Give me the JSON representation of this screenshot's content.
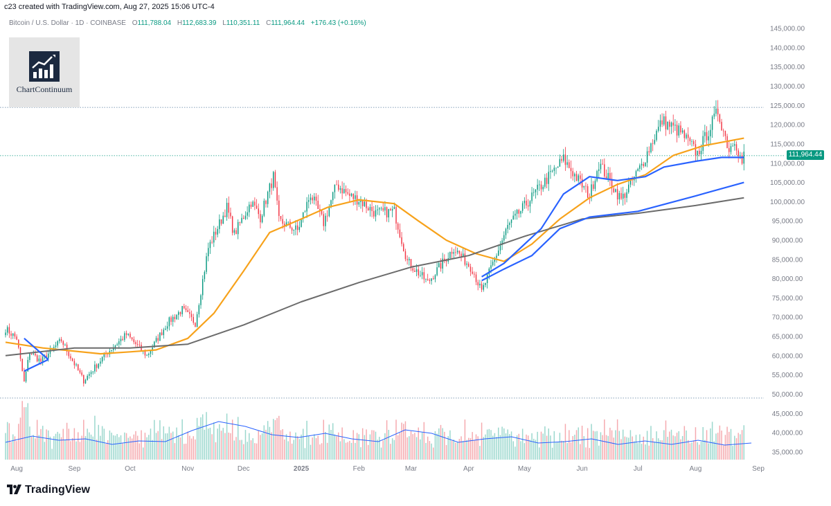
{
  "header": {
    "created": "c23 created with TradingView.com, Aug 27, 2025 15:06 UTC-4",
    "symbol": "Bitcoin / U.S. Dollar · 1D · COINBASE",
    "o_label": "O",
    "o": "111,788.04",
    "h_label": "H",
    "h": "112,683.39",
    "l_label": "L",
    "l": "110,351.11",
    "c_label": "C",
    "c": "111,964.44",
    "change": "+176.43 (+0.16%)"
  },
  "logo": {
    "text": "ChartContinuum",
    "icon": "bar-chart-uptrend-icon"
  },
  "footer": {
    "brand": "TradingView",
    "icon": "tradingview-logo-icon"
  },
  "last_price": "111,964.44",
  "colors": {
    "up": "#089981",
    "down": "#f23645",
    "ema_orange": "#f7a21b",
    "ma_blue": "#2962ff",
    "ma_gray": "#6b6b6b",
    "volume_up": "#9ad7cd",
    "volume_down": "#f5a9ae",
    "volume_ma": "#2962ff",
    "dotted": "#5a7fa0"
  },
  "chart_data": {
    "type": "candlestick",
    "price_axis": {
      "ticks": [
        "145,000.00",
        "140,000.00",
        "135,000.00",
        "130,000.00",
        "125,000.00",
        "120,000.00",
        "115,000.00",
        "110,000.00",
        "105,000.00",
        "100,000.00",
        "95,000.00",
        "90,000.00",
        "85,000.00",
        "80,000.00",
        "75,000.00",
        "70,000.00",
        "65,000.00",
        "60,000.00",
        "55,000.00",
        "50,000.00",
        "45,000.00",
        "40,000.00",
        "35,000.00"
      ],
      "range": [
        33000,
        147000
      ]
    },
    "time_axis": {
      "labels": [
        "Aug",
        "Sep",
        "Oct",
        "Nov",
        "Dec",
        "2025",
        "Feb",
        "Mar",
        "Apr",
        "May",
        "Jun",
        "Jul",
        "Aug",
        "Sep"
      ],
      "range": [
        "2024-07-26",
        "2025-08-31"
      ]
    },
    "horizontal_levels": [
      124500,
      111964.44,
      49000
    ],
    "price_path": [
      [
        "2024-07-26",
        67000
      ],
      [
        "2024-08-01",
        64500
      ],
      [
        "2024-08-05",
        53000
      ],
      [
        "2024-08-08",
        61000
      ],
      [
        "2024-08-14",
        58500
      ],
      [
        "2024-08-25",
        64000
      ],
      [
        "2024-09-06",
        53500
      ],
      [
        "2024-09-18",
        60500
      ],
      [
        "2024-09-29",
        65500
      ],
      [
        "2024-10-10",
        60000
      ],
      [
        "2024-10-21",
        68500
      ],
      [
        "2024-10-29",
        72000
      ],
      [
        "2024-11-05",
        68500
      ],
      [
        "2024-11-12",
        88000
      ],
      [
        "2024-11-22",
        98500
      ],
      [
        "2024-11-26",
        91500
      ],
      [
        "2024-12-05",
        100000
      ],
      [
        "2024-12-10",
        96000
      ],
      [
        "2024-12-17",
        106500
      ],
      [
        "2024-12-20",
        95000
      ],
      [
        "2024-12-30",
        92500
      ],
      [
        "2025-01-06",
        102000
      ],
      [
        "2025-01-13",
        94500
      ],
      [
        "2025-01-20",
        104500
      ],
      [
        "2025-01-27",
        101500
      ],
      [
        "2025-02-01",
        100500
      ],
      [
        "2025-02-10",
        97000
      ],
      [
        "2025-02-20",
        97500
      ],
      [
        "2025-02-27",
        84500
      ],
      [
        "2025-03-10",
        79000
      ],
      [
        "2025-03-24",
        88000
      ],
      [
        "2025-04-03",
        82500
      ],
      [
        "2025-04-08",
        76500
      ],
      [
        "2025-04-14",
        84000
      ],
      [
        "2025-04-22",
        93500
      ],
      [
        "2025-05-08",
        103000
      ],
      [
        "2025-05-22",
        111000
      ],
      [
        "2025-06-05",
        101500
      ],
      [
        "2025-06-10",
        110000
      ],
      [
        "2025-06-22",
        100500
      ],
      [
        "2025-07-03",
        109500
      ],
      [
        "2025-07-10",
        117000
      ],
      [
        "2025-07-14",
        121000
      ],
      [
        "2025-07-24",
        118000
      ],
      [
        "2025-08-02",
        112500
      ],
      [
        "2025-08-13",
        123500
      ],
      [
        "2025-08-19",
        113500
      ],
      [
        "2025-08-22",
        116500
      ],
      [
        "2025-08-26",
        110000
      ],
      [
        "2025-08-27",
        111964
      ]
    ],
    "indicators": [
      {
        "color_key": "ema_orange",
        "points": [
          [
            "2024-07-26",
            63500
          ],
          [
            "2024-08-15",
            62000
          ],
          [
            "2024-09-15",
            60500
          ],
          [
            "2024-10-01",
            61000
          ],
          [
            "2024-10-15",
            61500
          ],
          [
            "2024-11-01",
            64500
          ],
          [
            "2024-11-15",
            71000
          ],
          [
            "2024-12-01",
            82000
          ],
          [
            "2024-12-15",
            92000
          ],
          [
            "2025-01-01",
            95500
          ],
          [
            "2025-01-15",
            98500
          ],
          [
            "2025-02-01",
            100500
          ],
          [
            "2025-02-20",
            99500
          ],
          [
            "2025-03-05",
            95000
          ],
          [
            "2025-03-20",
            90000
          ],
          [
            "2025-04-05",
            86500
          ],
          [
            "2025-04-20",
            84500
          ],
          [
            "2025-05-05",
            89000
          ],
          [
            "2025-05-20",
            95500
          ],
          [
            "2025-06-05",
            101000
          ],
          [
            "2025-06-20",
            104500
          ],
          [
            "2025-07-05",
            107000
          ],
          [
            "2025-07-20",
            112000
          ],
          [
            "2025-08-05",
            114500
          ],
          [
            "2025-08-27",
            116500
          ]
        ]
      },
      {
        "color_key": "ma_gray",
        "points": [
          [
            "2024-07-26",
            60000
          ],
          [
            "2024-09-01",
            62000
          ],
          [
            "2024-10-01",
            62000
          ],
          [
            "2024-11-01",
            63000
          ],
          [
            "2024-12-01",
            68000
          ],
          [
            "2025-01-01",
            74000
          ],
          [
            "2025-02-01",
            79000
          ],
          [
            "2025-03-01",
            83000
          ],
          [
            "2025-04-01",
            86000
          ],
          [
            "2025-05-01",
            91000
          ],
          [
            "2025-06-01",
            95500
          ],
          [
            "2025-07-01",
            97000
          ],
          [
            "2025-08-01",
            99000
          ],
          [
            "2025-08-27",
            101000
          ]
        ]
      },
      {
        "color_key": "ma_blue",
        "points": [
          [
            "2025-04-08",
            79500
          ],
          [
            "2025-04-20",
            82500
          ],
          [
            "2025-05-05",
            86000
          ],
          [
            "2025-05-20",
            93000
          ],
          [
            "2025-06-05",
            96000
          ],
          [
            "2025-07-01",
            97500
          ],
          [
            "2025-08-01",
            101500
          ],
          [
            "2025-08-27",
            105000
          ]
        ]
      },
      {
        "color_key": "ma_blue",
        "points": [
          [
            "2025-04-08",
            80500
          ],
          [
            "2025-04-20",
            84000
          ],
          [
            "2025-05-10",
            93000
          ],
          [
            "2025-05-22",
            102000
          ],
          [
            "2025-06-05",
            106500
          ],
          [
            "2025-06-20",
            105500
          ],
          [
            "2025-07-05",
            106500
          ],
          [
            "2025-07-15",
            109000
          ],
          [
            "2025-08-01",
            110500
          ],
          [
            "2025-08-15",
            111500
          ],
          [
            "2025-08-27",
            111500
          ]
        ]
      },
      {
        "color_key": "ma_blue",
        "points": [
          [
            "2024-08-05",
            56000
          ],
          [
            "2024-08-18",
            59000
          ]
        ]
      },
      {
        "color_key": "ma_blue",
        "points": [
          [
            "2024-08-05",
            64500
          ],
          [
            "2024-08-18",
            59000
          ]
        ]
      }
    ],
    "volume_ma_levels": [
      0.25,
      0.34,
      0.28,
      0.3,
      0.22,
      0.27,
      0.26,
      0.42,
      0.55,
      0.48,
      0.36,
      0.32,
      0.38,
      0.3,
      0.26,
      0.43,
      0.38,
      0.25,
      0.3,
      0.33,
      0.24,
      0.26,
      0.3,
      0.22,
      0.27,
      0.22,
      0.28,
      0.21,
      0.24
    ]
  }
}
